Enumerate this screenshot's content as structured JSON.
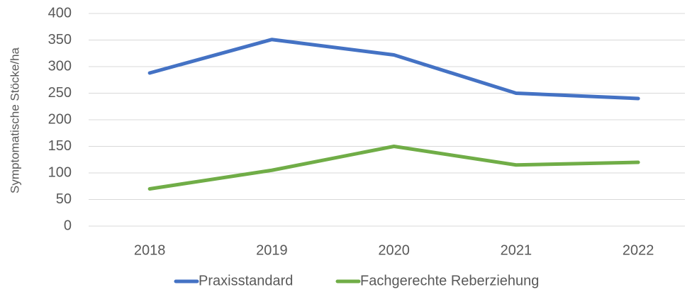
{
  "chart_data": {
    "type": "line",
    "y_label": "Symptomatische Stöcke/ha",
    "categories": [
      "2018",
      "2019",
      "2020",
      "2021",
      "2022"
    ],
    "series": [
      {
        "name": "Praxisstandard",
        "color": "#4472c4",
        "values": [
          288,
          351,
          322,
          250,
          240
        ]
      },
      {
        "name": "Fachgerechte Reberziehung",
        "color": "#70ad47",
        "values": [
          70,
          105,
          150,
          115,
          120
        ]
      }
    ],
    "ylim": [
      0,
      400
    ],
    "yticks": [
      0,
      50,
      100,
      150,
      200,
      250,
      300,
      350,
      400
    ],
    "grid": true,
    "legend": "bottom"
  }
}
